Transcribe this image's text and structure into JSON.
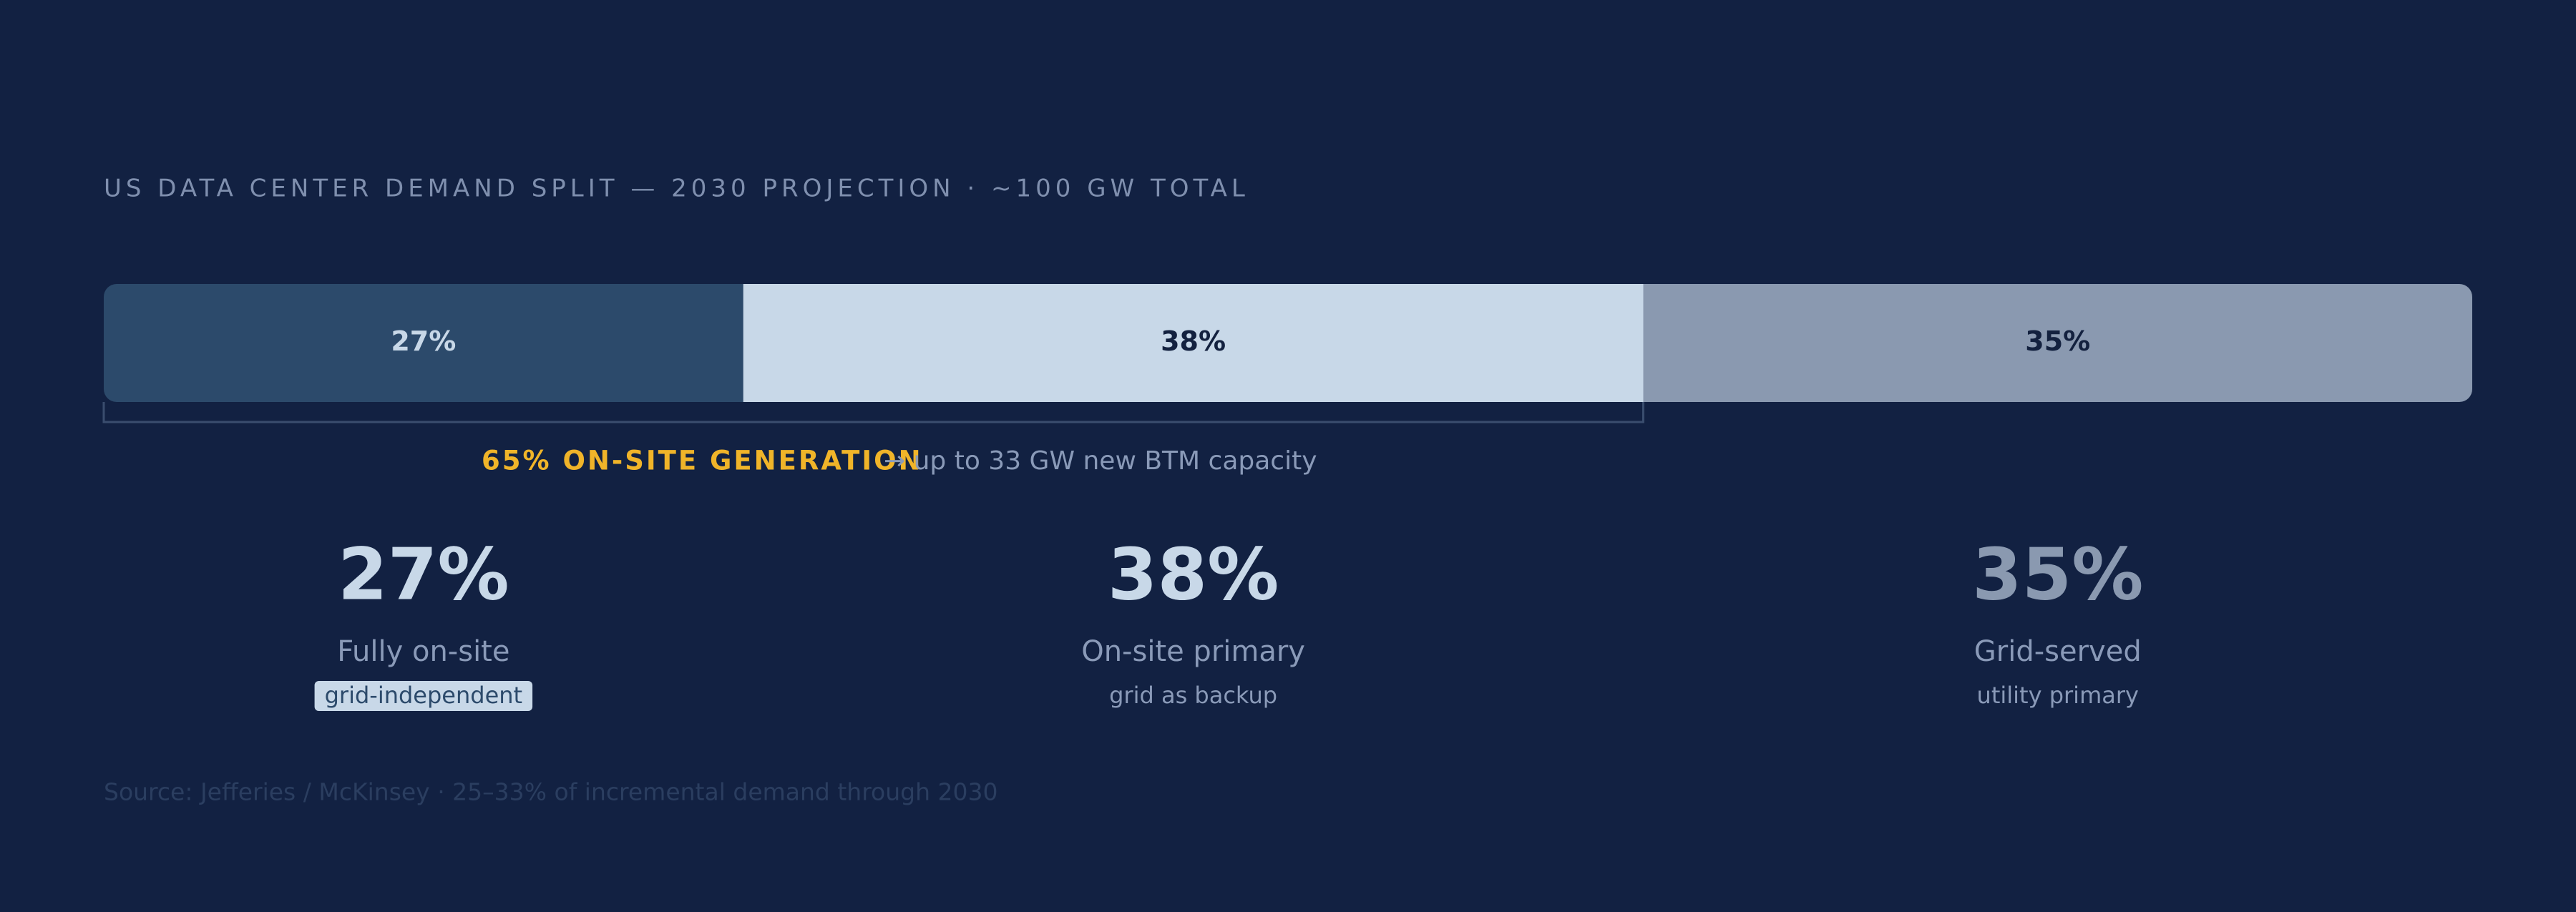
{
  "chart_data": {
    "type": "stacked-bar",
    "title": "US DATA CENTER DEMAND SPLIT — 2030 PROJECTION · ~100 GW TOTAL",
    "xlim": [
      0,
      100
    ],
    "series": [
      {
        "name": "Fully on-site",
        "note": "grid-independent",
        "color": "#2c4a6b",
        "values": [
          27
        ],
        "value_labels": [
          "27%"
        ]
      },
      {
        "name": "On-site primary",
        "note": "grid as backup",
        "color": "#c8d8e8",
        "values": [
          38
        ],
        "value_labels": [
          "38%"
        ]
      },
      {
        "name": "Grid-served",
        "note": "utility primary",
        "color": "#8a99b0",
        "values": [
          35
        ],
        "value_labels": [
          "35%"
        ]
      }
    ],
    "annotation": {
      "value": 65,
      "label": "65% ON-SITE GENERATION",
      "detail": "→ up to 33 GW new BTM capacity"
    },
    "source": "Source: Jefferies / McKinsey · 25–33% of incremental demand through 2030"
  }
}
